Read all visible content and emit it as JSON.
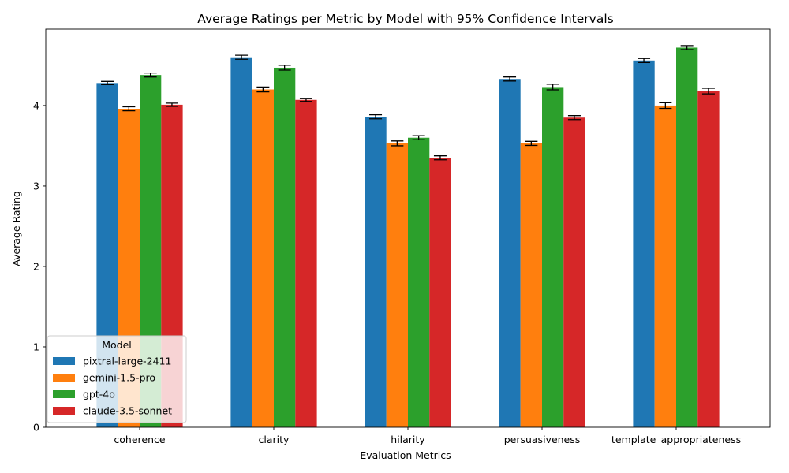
{
  "chart_data": {
    "type": "bar",
    "title": "Average Ratings per Metric by Model with 95% Confidence Intervals",
    "xlabel": "Evaluation Metrics",
    "ylabel": "Average Rating",
    "ylim": [
      0,
      4.95
    ],
    "yticks": [
      "0",
      "1",
      "2",
      "3",
      "4"
    ],
    "categories": [
      "coherence",
      "clarity",
      "hilarity",
      "persuasiveness",
      "template_appropriateness"
    ],
    "legend_title": "Model",
    "legend_position": "lower-left",
    "grid": false,
    "series": [
      {
        "name": "pixtral-large-2411",
        "color": "#1f77b4",
        "values": [
          4.28,
          4.6,
          3.86,
          4.33,
          4.56
        ],
        "ci": [
          0.02,
          0.025,
          0.025,
          0.025,
          0.025
        ]
      },
      {
        "name": "gemini-1.5-pro",
        "color": "#ff7f0e",
        "values": [
          3.96,
          4.2,
          3.53,
          3.53,
          4.0
        ],
        "ci": [
          0.025,
          0.03,
          0.03,
          0.025,
          0.035
        ]
      },
      {
        "name": "gpt-4o",
        "color": "#2ca02c",
        "values": [
          4.38,
          4.47,
          3.6,
          4.23,
          4.72
        ],
        "ci": [
          0.025,
          0.03,
          0.025,
          0.035,
          0.025
        ]
      },
      {
        "name": "claude-3.5-sonnet",
        "color": "#d62728",
        "values": [
          4.01,
          4.07,
          3.35,
          3.85,
          4.18
        ],
        "ci": [
          0.02,
          0.02,
          0.025,
          0.025,
          0.035
        ]
      }
    ]
  }
}
